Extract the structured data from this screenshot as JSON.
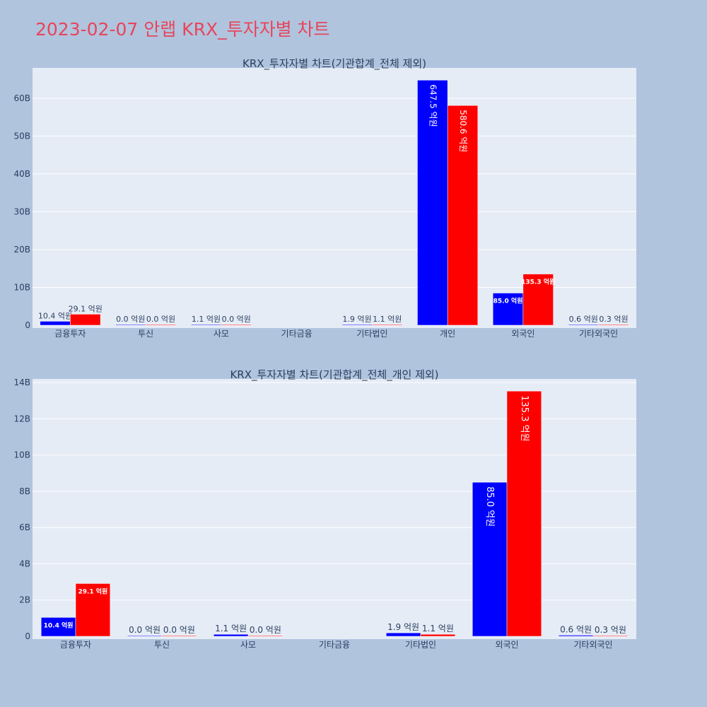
{
  "main_title": "2023-02-07 안랩 KRX_투자자별 차트",
  "colors": {
    "series_a": "#0000ff",
    "series_b": "#ff0000",
    "plot_bg": "#e5ecf6",
    "page_bg": "#b0c4de",
    "title": "#e8455a"
  },
  "chart_data": [
    {
      "type": "bar",
      "title": "KRX_투자자별 차트(기관합계_전체 제외)",
      "categories": [
        "금융투자",
        "투신",
        "사모",
        "기타금융",
        "기타법인",
        "개인",
        "외국인",
        "기타외국인"
      ],
      "series": [
        {
          "values": [
            1.04,
            0,
            0.11,
            null,
            0.19,
            64.75,
            8.5,
            0.06
          ]
        },
        {
          "values": [
            2.91,
            0,
            0,
            null,
            0.11,
            58.06,
            13.53,
            0.03
          ]
        }
      ],
      "labels": [
        [
          "10.4 억원",
          "0.0 억원",
          "1.1 억원",
          "",
          "1.9 억원",
          "647.5 억원",
          "85.0 억원",
          "0.6 억원"
        ],
        [
          "29.1 억원",
          "0.0 억원",
          "0.0 억원",
          "",
          "1.1 억원",
          "580.6 억원",
          "135.3 억원",
          "0.3 억원"
        ]
      ],
      "yticks": [
        "0",
        "10B",
        "20B",
        "30B",
        "40B",
        "50B",
        "60B"
      ],
      "ylim": [
        0,
        68
      ]
    },
    {
      "type": "bar",
      "title": "KRX_투자자별 차트(기관합계_전체_개인 제외)",
      "categories": [
        "금융투자",
        "투신",
        "사모",
        "기타금융",
        "기타법인",
        "외국인",
        "기타외국인"
      ],
      "series": [
        {
          "values": [
            1.04,
            0,
            0.11,
            null,
            0.19,
            8.5,
            0.06
          ]
        },
        {
          "values": [
            2.91,
            0,
            0,
            null,
            0.11,
            13.53,
            0.03
          ]
        }
      ],
      "labels": [
        [
          "10.4 억원",
          "0.0 억원",
          "1.1 억원",
          "",
          "1.9 억원",
          "85.0 억원",
          "0.6 억원"
        ],
        [
          "29.1 억원",
          "0.0 억원",
          "0.0 억원",
          "",
          "1.1 억원",
          "135.3 억원",
          "0.3 억원"
        ]
      ],
      "yticks": [
        "0",
        "2B",
        "4B",
        "6B",
        "8B",
        "10B",
        "12B",
        "14B"
      ],
      "ylim": [
        0,
        14.2
      ]
    }
  ]
}
